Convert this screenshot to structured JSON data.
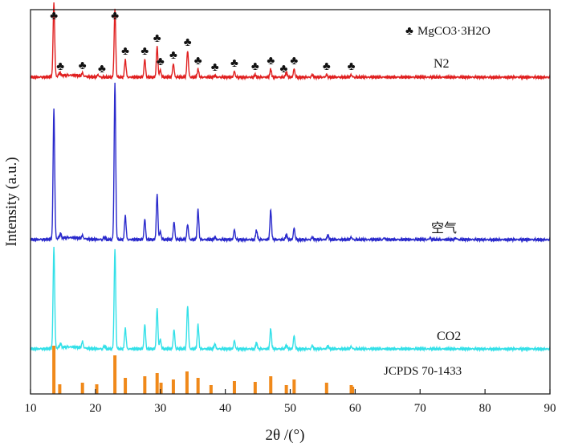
{
  "chart_data": {
    "type": "line",
    "title": "",
    "xlabel": "2θ /(°)",
    "ylabel": "Intensity (a.u.)",
    "xlim": [
      10,
      90
    ],
    "xticks": [
      "10",
      "20",
      "30",
      "40",
      "50",
      "60",
      "70",
      "80",
      "90"
    ],
    "grid": false,
    "legend": {
      "symbol": "♣",
      "label": "MgCO3·3H2O",
      "placement": "top-right"
    },
    "series": [
      {
        "name": "N2",
        "color": "#e02020",
        "peaks": [
          {
            "x": 13.6,
            "y": 92
          },
          {
            "x": 14.5,
            "y": 4
          },
          {
            "x": 18.0,
            "y": 4
          },
          {
            "x": 20.4,
            "y": 3
          },
          {
            "x": 23.0,
            "y": 85
          },
          {
            "x": 24.6,
            "y": 22
          },
          {
            "x": 27.6,
            "y": 22
          },
          {
            "x": 29.5,
            "y": 38
          },
          {
            "x": 30.0,
            "y": 9
          },
          {
            "x": 32.0,
            "y": 17
          },
          {
            "x": 34.2,
            "y": 33
          },
          {
            "x": 35.8,
            "y": 10
          },
          {
            "x": 38.4,
            "y": 2
          },
          {
            "x": 41.4,
            "y": 7
          },
          {
            "x": 44.6,
            "y": 3
          },
          {
            "x": 47.0,
            "y": 10
          },
          {
            "x": 49.4,
            "y": 6
          },
          {
            "x": 50.6,
            "y": 10
          },
          {
            "x": 53.4,
            "y": 3
          },
          {
            "x": 55.6,
            "y": 3
          },
          {
            "x": 59.4,
            "y": 3
          }
        ]
      },
      {
        "name": "空气",
        "color": "#2a2acc",
        "peaks": [
          {
            "x": 13.6,
            "y": 162
          },
          {
            "x": 14.6,
            "y": 6
          },
          {
            "x": 18.0,
            "y": 4
          },
          {
            "x": 21.4,
            "y": 3
          },
          {
            "x": 23.0,
            "y": 195
          },
          {
            "x": 24.6,
            "y": 30
          },
          {
            "x": 27.6,
            "y": 25
          },
          {
            "x": 29.5,
            "y": 56
          },
          {
            "x": 30.0,
            "y": 10
          },
          {
            "x": 32.1,
            "y": 22
          },
          {
            "x": 34.2,
            "y": 19
          },
          {
            "x": 35.8,
            "y": 37
          },
          {
            "x": 38.4,
            "y": 3
          },
          {
            "x": 41.4,
            "y": 12
          },
          {
            "x": 44.8,
            "y": 12
          },
          {
            "x": 47.0,
            "y": 37
          },
          {
            "x": 49.4,
            "y": 6
          },
          {
            "x": 50.6,
            "y": 14
          },
          {
            "x": 53.4,
            "y": 3
          },
          {
            "x": 55.8,
            "y": 6
          },
          {
            "x": 59.4,
            "y": 3
          },
          {
            "x": 64.5,
            "y": 2
          },
          {
            "x": 71.5,
            "y": 2
          },
          {
            "x": 75.5,
            "y": 2
          }
        ]
      },
      {
        "name": "CO2",
        "color": "#33e0e8",
        "peaks": [
          {
            "x": 13.6,
            "y": 126
          },
          {
            "x": 14.6,
            "y": 5
          },
          {
            "x": 18.0,
            "y": 8
          },
          {
            "x": 21.4,
            "y": 4
          },
          {
            "x": 23.0,
            "y": 124
          },
          {
            "x": 24.6,
            "y": 26
          },
          {
            "x": 27.6,
            "y": 30
          },
          {
            "x": 29.5,
            "y": 50
          },
          {
            "x": 30.0,
            "y": 12
          },
          {
            "x": 32.1,
            "y": 24
          },
          {
            "x": 34.2,
            "y": 54
          },
          {
            "x": 35.8,
            "y": 30
          },
          {
            "x": 38.4,
            "y": 6
          },
          {
            "x": 41.4,
            "y": 10
          },
          {
            "x": 44.8,
            "y": 8
          },
          {
            "x": 47.0,
            "y": 25
          },
          {
            "x": 49.4,
            "y": 5
          },
          {
            "x": 50.6,
            "y": 16
          },
          {
            "x": 53.4,
            "y": 4
          },
          {
            "x": 55.8,
            "y": 4
          },
          {
            "x": 59.4,
            "y": 3
          }
        ]
      },
      {
        "name": "JCPDS 70-1433",
        "color": "#f0891a",
        "type": "stick",
        "peaks": [
          {
            "x": 13.6,
            "y": 60
          },
          {
            "x": 14.5,
            "y": 12
          },
          {
            "x": 18.0,
            "y": 14
          },
          {
            "x": 20.2,
            "y": 12
          },
          {
            "x": 23.0,
            "y": 48
          },
          {
            "x": 24.6,
            "y": 20
          },
          {
            "x": 27.6,
            "y": 22
          },
          {
            "x": 29.5,
            "y": 26
          },
          {
            "x": 30.1,
            "y": 14
          },
          {
            "x": 32.0,
            "y": 18
          },
          {
            "x": 34.1,
            "y": 28
          },
          {
            "x": 35.8,
            "y": 20
          },
          {
            "x": 37.8,
            "y": 11
          },
          {
            "x": 41.4,
            "y": 16
          },
          {
            "x": 44.6,
            "y": 15
          },
          {
            "x": 47.0,
            "y": 22
          },
          {
            "x": 49.4,
            "y": 11
          },
          {
            "x": 50.6,
            "y": 18
          },
          {
            "x": 55.6,
            "y": 14
          },
          {
            "x": 59.4,
            "y": 11
          },
          {
            "x": 59.6,
            "y": 9
          }
        ]
      }
    ],
    "annotations": {
      "marker_symbol": "♣",
      "marker_positions_x": [
        13.6,
        14.6,
        18.0,
        21.0,
        23.0,
        24.6,
        27.6,
        29.5,
        30.0,
        32.0,
        34.2,
        35.8,
        38.4,
        41.4,
        44.6,
        47.0,
        49.0,
        50.6,
        55.6,
        59.4
      ]
    }
  }
}
